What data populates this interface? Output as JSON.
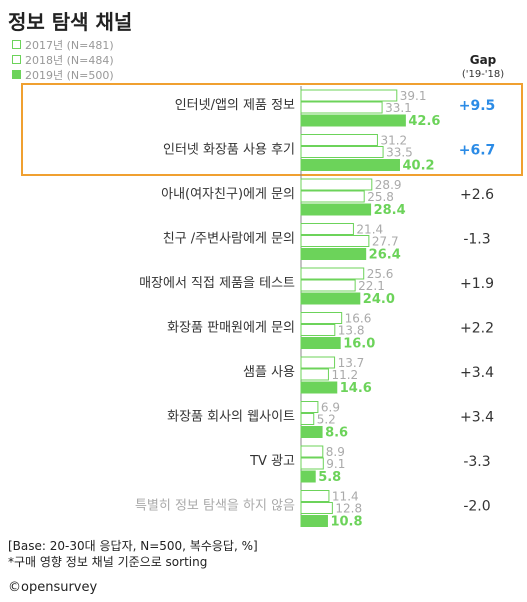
{
  "title": "정보 탐색 채널",
  "gap_header": {
    "title": "Gap",
    "subtitle": "('19-'18)"
  },
  "colors": {
    "green": "#6cd35a",
    "blue": "#2b8be6",
    "highlight_border": "#f0a030",
    "gray_label": "#aaaaaa",
    "axis": "#888888"
  },
  "chart_data": {
    "type": "bar",
    "orientation": "horizontal",
    "categories": [
      "인터넷/앱의 제품 정보",
      "인터넷 화장품 사용 후기",
      "아내(여자친구)에게 문의",
      "친구 /주변사람에게 문의",
      "매장에서 직접 제품을 테스트",
      "화장품 판매원에게 문의",
      "샘플 사용",
      "화장품 회사의 웹사이트",
      "TV 광고",
      "특별히 정보 탐색을 하지 않음"
    ],
    "series": [
      {
        "name": "2017년 (N=481)",
        "values": [
          39.1,
          31.2,
          28.9,
          21.4,
          25.6,
          16.6,
          13.7,
          6.9,
          8.9,
          11.4
        ],
        "labels": [
          "39.1",
          "31.2",
          "28.9",
          "21.4",
          "25.6",
          "16.6",
          "13.7",
          "6.9",
          "8.9",
          "11.4"
        ]
      },
      {
        "name": "2018년 (N=484)",
        "values": [
          33.1,
          33.5,
          25.8,
          27.7,
          22.1,
          13.8,
          11.2,
          5.2,
          9.1,
          12.8
        ],
        "labels": [
          "33.1",
          "33.5",
          "25.8",
          "27.7",
          "22.1",
          "13.8",
          "11.2",
          "5.2",
          "9.1",
          "12.8"
        ]
      },
      {
        "name": "2019년 (N=500)",
        "values": [
          42.6,
          40.2,
          28.4,
          26.4,
          24.0,
          16.0,
          14.6,
          8.6,
          5.8,
          10.8
        ],
        "labels": [
          "42.6",
          "40.2",
          "28.4",
          "26.4",
          "24.0",
          "16.0",
          "14.6",
          "8.6",
          "5.8",
          "10.8"
        ]
      }
    ],
    "gap": [
      "+9.5",
      "+6.7",
      "+2.6",
      "-1.3",
      "+1.9",
      "+2.2",
      "+3.4",
      "+3.4",
      "-3.3",
      "-2.0"
    ],
    "highlighted_categories": [
      0,
      1
    ],
    "xlim": [
      0,
      50
    ]
  },
  "footnotes": [
    "[Base: 20-30대 응답자, N=500, 복수응답, %]",
    "*구매 영향 정보 채널 기준으로 sorting"
  ],
  "brand": "©opensurvey"
}
